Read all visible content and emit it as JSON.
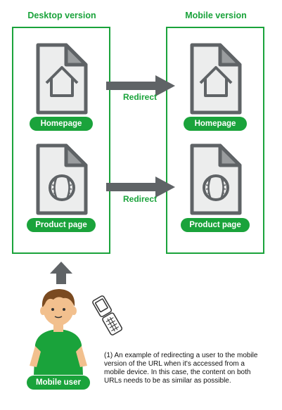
{
  "desktop": {
    "title": "Desktop version",
    "homepage_label": "Homepage",
    "product_label": "Product page"
  },
  "mobile": {
    "title": "Mobile version",
    "homepage_label": "Homepage",
    "product_label": "Product page"
  },
  "arrows": {
    "top_label": "Redirect",
    "bottom_label": "Redirect"
  },
  "user": {
    "label": "Mobile user"
  },
  "caption": "(1) An example of redirecting a user to the mobile version of the URL when it's accessed from a mobile device. In this case, the content on both URLs needs to be as similar as possible.",
  "colors": {
    "green": "#1aa33b",
    "gray": "#5f6366",
    "doc_fill": "#eceded"
  },
  "icons": {
    "homepage": "house-document-icon",
    "product": "baseball-document-icon",
    "phone": "flip-phone-icon"
  }
}
